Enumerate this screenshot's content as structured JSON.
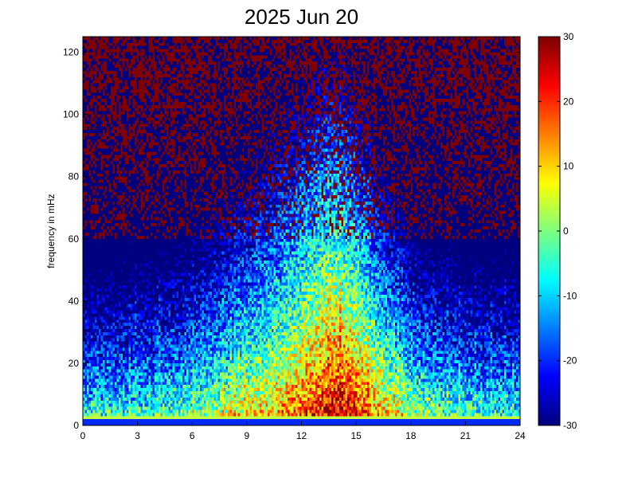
{
  "chart_data": {
    "type": "heatmap",
    "title": "2025 Jun 20",
    "xlabel": "",
    "ylabel": "frequency in mHz",
    "xlim": [
      0,
      24
    ],
    "ylim": [
      0,
      125
    ],
    "xticks": [
      "0",
      "3",
      "6",
      "9",
      "12",
      "15",
      "18",
      "21",
      "24"
    ],
    "yticks": [
      "0",
      "20",
      "40",
      "60",
      "80",
      "100",
      "120"
    ],
    "colorbar": {
      "range": [
        -30,
        30
      ],
      "ticks": [
        "-30",
        "-20",
        "-10",
        "0",
        "10",
        "20",
        "30"
      ],
      "colormap": "jet"
    },
    "grid": false
  }
}
